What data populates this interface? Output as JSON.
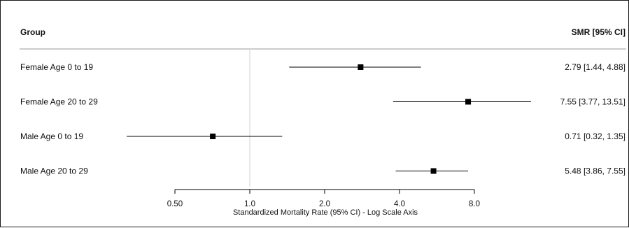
{
  "chart_data": {
    "type": "forest",
    "header": {
      "group_label": "Group",
      "estimate_label": "SMR [95% CI]"
    },
    "rows": [
      {
        "group": "Female Age 0 to 19",
        "smr": 2.79,
        "lower": 1.44,
        "upper": 4.88,
        "text": "2.79 [1.44, 4.88]"
      },
      {
        "group": "Female Age 20 to 29",
        "smr": 7.55,
        "lower": 3.77,
        "upper": 13.51,
        "text": "7.55 [3.77, 13.51]"
      },
      {
        "group": "Male Age 0 to 19",
        "smr": 0.71,
        "lower": 0.32,
        "upper": 1.35,
        "text": "0.71 [0.32, 1.35]"
      },
      {
        "group": "Male Age 20 to 29",
        "smr": 5.48,
        "lower": 3.86,
        "upper": 7.55,
        "text": "5.48 [3.86, 7.55]"
      }
    ],
    "x_axis": {
      "scale": "log",
      "ticks": [
        0.5,
        1.0,
        2.0,
        4.0,
        8.0
      ],
      "tick_labels": [
        "0.50",
        "1.0",
        "2.0",
        "4.0",
        "8.0"
      ],
      "label": "Standardized Mortality Rate (95% CI) - Log Scale Axis",
      "reference_line": 1.0
    },
    "colors": {
      "marker": "#000000",
      "ci_line": "#000000",
      "reference_line": "#d0d0d0",
      "header_rule": "#9a9a9a"
    }
  }
}
